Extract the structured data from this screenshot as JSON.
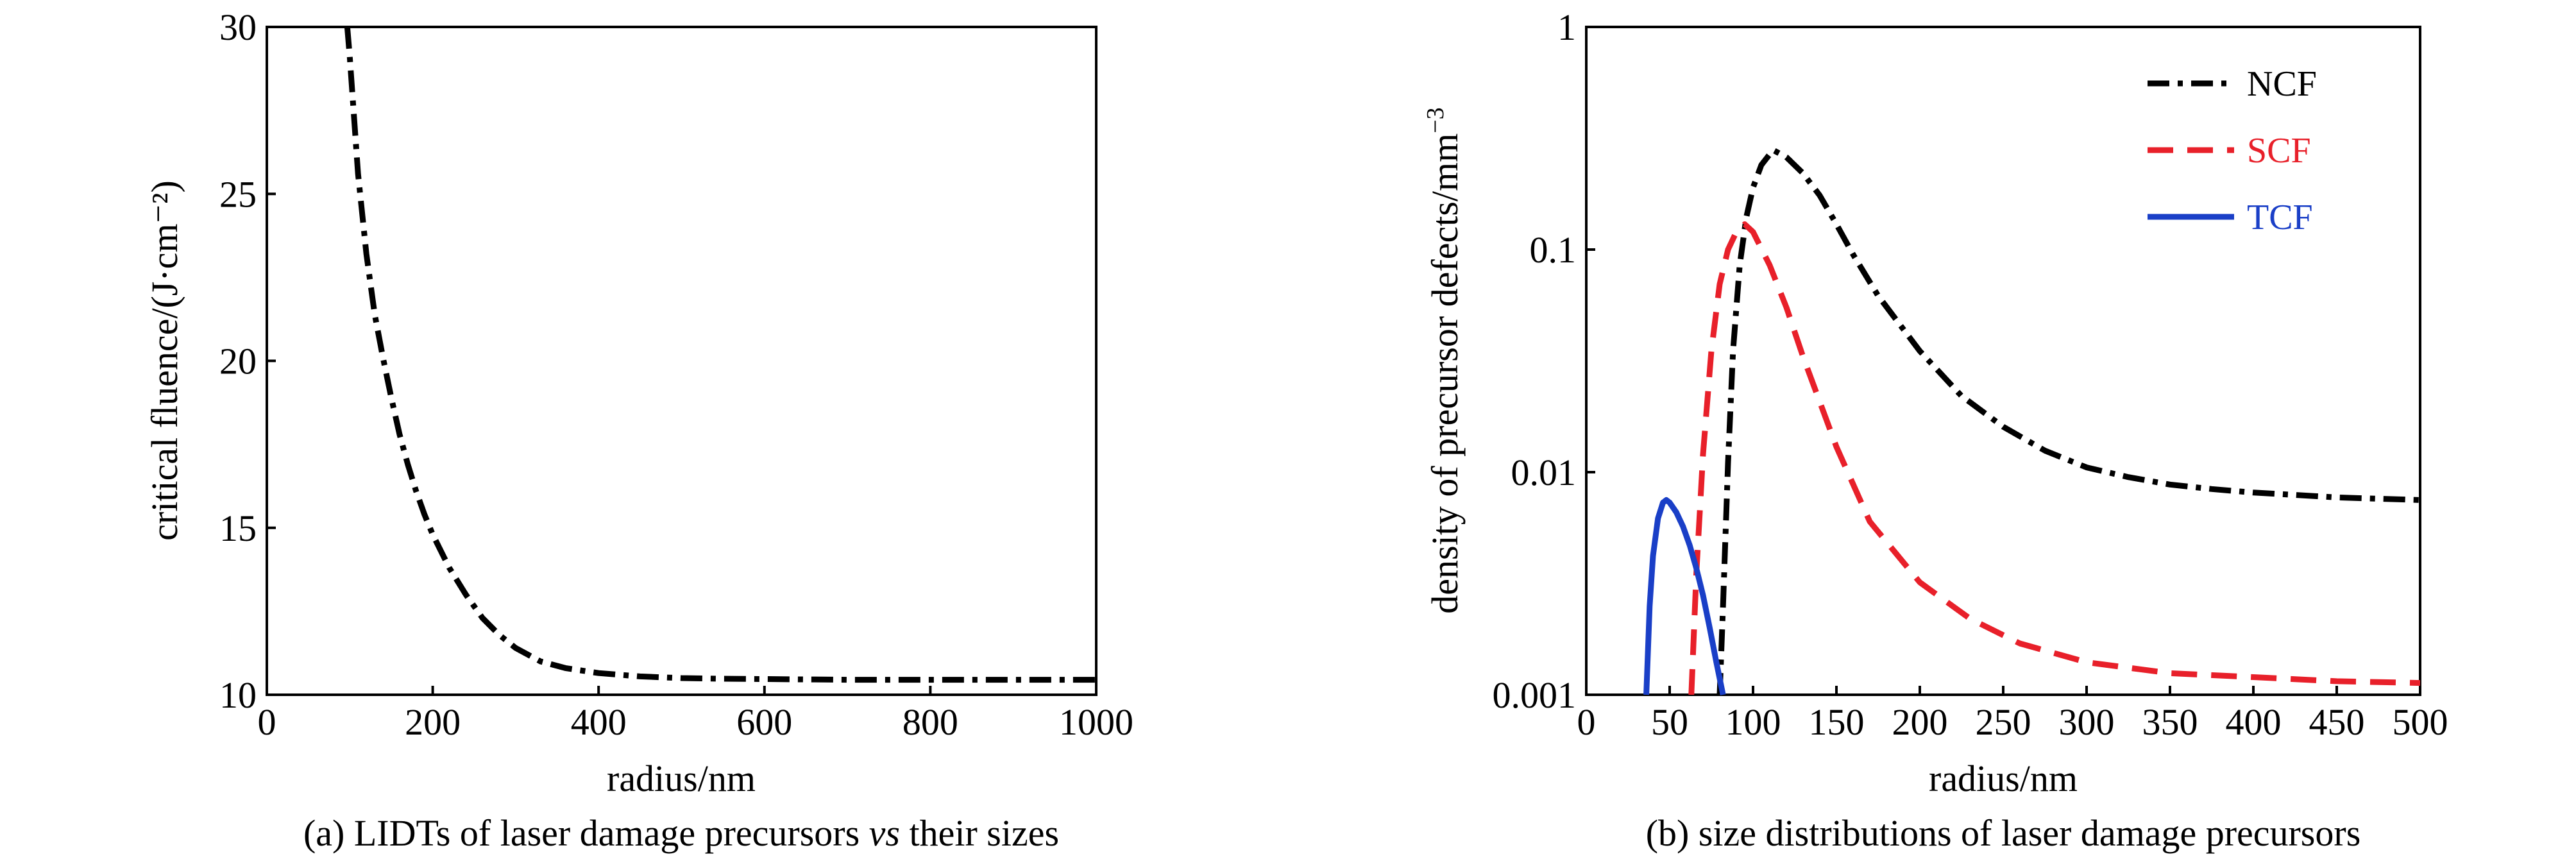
{
  "chart_data": [
    {
      "type": "line",
      "caption_prefix": "(a) LIDTs of laser damage precursors ",
      "caption_italic": "vs",
      "caption_suffix": " their sizes",
      "xlabel": "radius/nm",
      "ylabel": "critical fluence/(J·cm⁻²)",
      "xlim": [
        0,
        1000
      ],
      "ylim": [
        10,
        30
      ],
      "xticks": [
        "0",
        "200",
        "400",
        "600",
        "800",
        "1000"
      ],
      "yticks": [
        "10",
        "15",
        "20",
        "25",
        "30"
      ],
      "grid": false,
      "series": [
        {
          "color": "#000000",
          "style": "dash-dot",
          "x": [
            97,
            100,
            110,
            120,
            130,
            140,
            150,
            160,
            170,
            180,
            190,
            200,
            220,
            240,
            260,
            280,
            300,
            330,
            360,
            400,
            450,
            500,
            550,
            600,
            700,
            800,
            900,
            1000
          ],
          "y": [
            30,
            29.1,
            25.6,
            23.2,
            21.4,
            20.1,
            18.9,
            17.8,
            16.9,
            16.1,
            15.4,
            14.8,
            13.8,
            13.0,
            12.3,
            11.8,
            11.4,
            11.0,
            10.8,
            10.65,
            10.55,
            10.5,
            10.48,
            10.47,
            10.45,
            10.45,
            10.45,
            10.45
          ]
        }
      ]
    },
    {
      "type": "line",
      "caption": "(b) size distributions of laser damage precursors",
      "xlabel": "radius/nm",
      "ylabel_main": "density of precursor defects/mm",
      "ylabel_sup": "−3",
      "xlim": [
        0,
        500
      ],
      "ylim": [
        0.001,
        1
      ],
      "yscale": "log",
      "xticks": [
        "0",
        "50",
        "100",
        "150",
        "200",
        "250",
        "300",
        "350",
        "400",
        "450",
        "500"
      ],
      "yticks": [
        "0.001",
        "0.01",
        "0.1",
        "1"
      ],
      "grid": false,
      "legend_position": "top-right",
      "series": [
        {
          "name": "NCF",
          "color": "#000000",
          "style": "dash-dot",
          "x": [
            80,
            82,
            85,
            88,
            92,
            96,
            100,
            105,
            112,
            120,
            130,
            140,
            150,
            160,
            175,
            200,
            225,
            250,
            275,
            300,
            325,
            350,
            375,
            400,
            425,
            450,
            475,
            500
          ],
          "y": [
            0.001,
            0.0025,
            0.011,
            0.035,
            0.085,
            0.14,
            0.19,
            0.24,
            0.28,
            0.26,
            0.22,
            0.175,
            0.13,
            0.095,
            0.062,
            0.035,
            0.022,
            0.016,
            0.0125,
            0.0105,
            0.0095,
            0.0088,
            0.0084,
            0.0081,
            0.0079,
            0.0077,
            0.0076,
            0.0075
          ]
        },
        {
          "name": "SCF",
          "color": "#e8202a",
          "style": "dashed",
          "x": [
            63,
            66,
            70,
            75,
            80,
            85,
            90,
            95,
            100,
            110,
            120,
            130,
            150,
            170,
            200,
            230,
            260,
            300,
            350,
            400,
            450,
            500
          ],
          "y": [
            0.001,
            0.0035,
            0.012,
            0.035,
            0.07,
            0.1,
            0.12,
            0.13,
            0.12,
            0.085,
            0.055,
            0.033,
            0.013,
            0.006,
            0.0032,
            0.0022,
            0.0017,
            0.0014,
            0.00125,
            0.0012,
            0.00115,
            0.00113
          ]
        },
        {
          "name": "TCF",
          "color": "#1a3fc7",
          "style": "solid",
          "x": [
            36,
            38,
            40,
            43,
            46,
            48,
            50,
            54,
            58,
            62,
            66,
            70,
            74,
            78,
            82
          ],
          "y": [
            0.001,
            0.0025,
            0.0042,
            0.0062,
            0.0073,
            0.0075,
            0.0073,
            0.0066,
            0.0057,
            0.0047,
            0.0037,
            0.0028,
            0.002,
            0.0014,
            0.001
          ]
        }
      ]
    }
  ]
}
